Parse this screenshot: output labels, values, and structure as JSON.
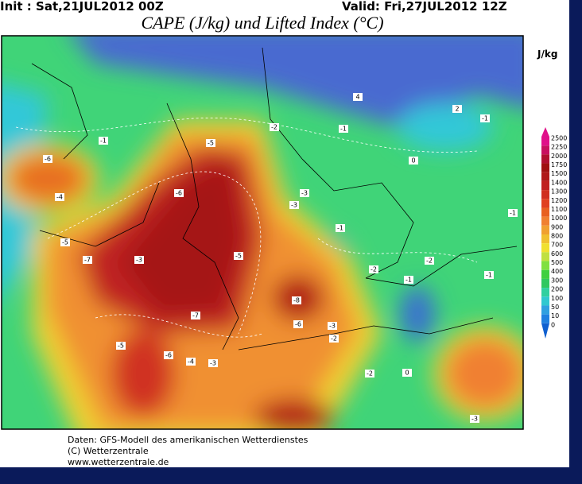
{
  "header": {
    "init": "Init : Sat,21JUL2012 00Z",
    "valid": "Valid: Fri,27JUL2012 12Z",
    "title": "CAPE (J/kg) und Lifted Index (°C)"
  },
  "colorbar": {
    "unit": "J/kg",
    "levels": [
      2500,
      2250,
      2000,
      1750,
      1500,
      1400,
      1300,
      1200,
      1100,
      1000,
      900,
      800,
      700,
      600,
      500,
      400,
      300,
      200,
      100,
      50,
      10,
      0
    ],
    "colors": [
      "#e0108a",
      "#c81060",
      "#b01030",
      "#a01010",
      "#b01818",
      "#c02020",
      "#d03020",
      "#e04020",
      "#e86020",
      "#f08030",
      "#f0a030",
      "#f0c030",
      "#f0e030",
      "#c0e040",
      "#80e040",
      "#40d040",
      "#30c860",
      "#30d0a0",
      "#30c8d0",
      "#30a0e0",
      "#2080e0",
      "#1060d0"
    ]
  },
  "map_labels": [
    -6,
    -4,
    -5,
    -7,
    -3,
    -6,
    -5,
    -5,
    -3,
    -3,
    -8,
    -7,
    -6,
    -5,
    -6,
    -4,
    -3,
    -2,
    -1,
    -1,
    -1,
    0,
    2,
    4,
    -1,
    -2,
    -2,
    -1,
    -1,
    -3,
    -2,
    0,
    -3,
    -1,
    -2
  ],
  "footer": [
    "Daten: GFS-Modell des amerikanischen Wetterdienstes",
    "(C) Wetterzentrale",
    "www.wetterzentrale.de"
  ]
}
